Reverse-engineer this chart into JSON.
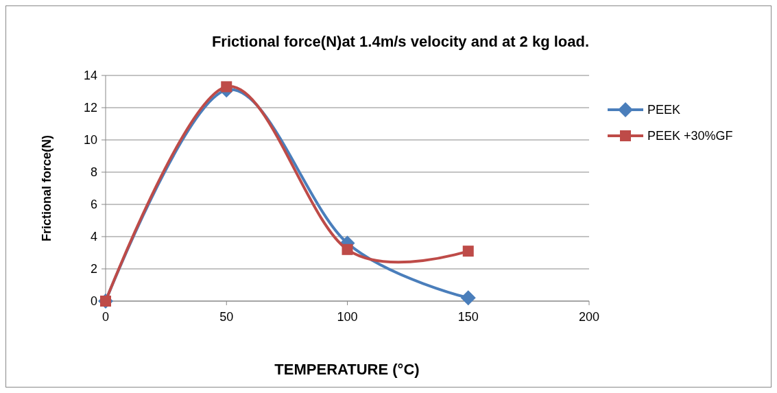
{
  "chart_data": {
    "type": "line",
    "title": "Frictional force(N)at 1.4m/s velocity  and at 2 kg load.",
    "xlabel": "TEMPERATURE (°C)",
    "ylabel": "Frictional force(N)",
    "x": [
      0,
      50,
      100,
      150
    ],
    "series": [
      {
        "name": "PEEK",
        "color": "#4a7ebb",
        "marker": "diamond",
        "values": [
          0,
          13.1,
          3.6,
          0.2
        ]
      },
      {
        "name": "PEEK +30%GF",
        "color": "#be4b48",
        "marker": "square",
        "values": [
          0,
          13.3,
          3.2,
          3.1
        ]
      }
    ],
    "xlim": [
      0,
      200
    ],
    "xticks": [
      0,
      50,
      100,
      150,
      200
    ],
    "ylim": [
      0,
      14
    ],
    "yticks": [
      0,
      2,
      4,
      6,
      8,
      10,
      12,
      14
    ],
    "grid": "y",
    "legend": "right"
  }
}
